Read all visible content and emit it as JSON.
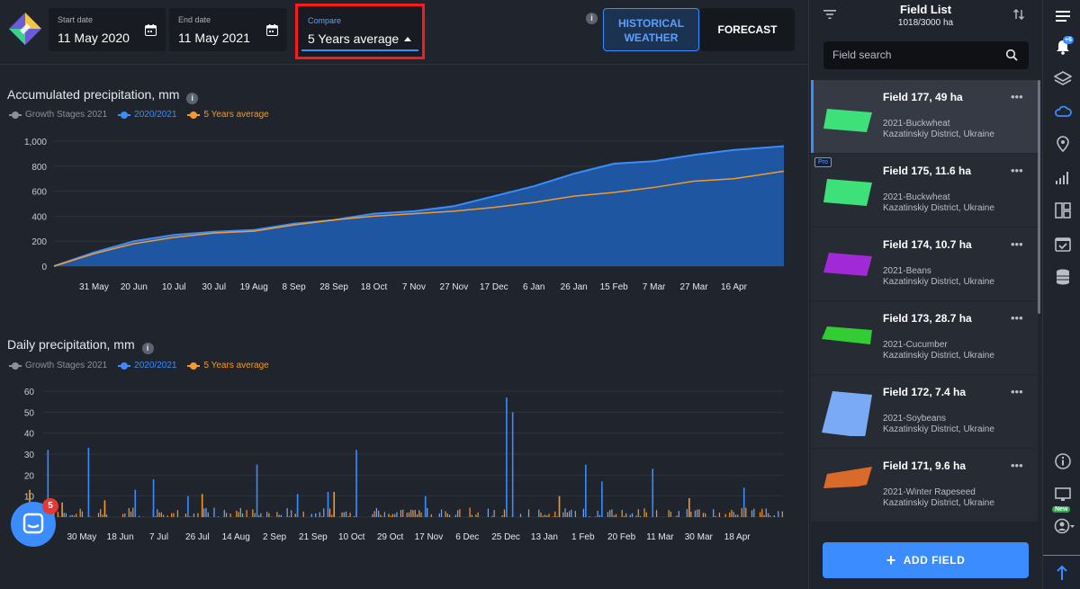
{
  "header": {
    "start_date": {
      "label": "Start date",
      "value": "11 May 2020"
    },
    "end_date": {
      "label": "End date",
      "value": "11 May 2021"
    },
    "compare": {
      "label": "Compare",
      "value": "5 Years average"
    },
    "historical_weather": "HISTORICAL WEATHER",
    "forecast": "FORECAST",
    "info_glyph": "i"
  },
  "legend": {
    "growth_stages": "Growth Stages 2021",
    "season": "2020/2021",
    "average": "5 Years average"
  },
  "colors": {
    "accent": "#3a8cff",
    "orange": "#f39a2a",
    "gray": "#8a9099",
    "highlight": "#ff1a1a"
  },
  "chart_data": [
    {
      "type": "area",
      "title": "Accumulated precipitation, mm",
      "legend": [
        "Growth Stages 2021",
        "2020/2021",
        "5 Years average"
      ],
      "ylim": [
        0,
        1000
      ],
      "y_ticks": [
        "0",
        "200",
        "400",
        "600",
        "800",
        "1,000"
      ],
      "x_ticks": [
        "31 May",
        "20 Jun",
        "10 Jul",
        "30 Jul",
        "19 Aug",
        "8 Sep",
        "28 Sep",
        "18 Oct",
        "7 Nov",
        "27 Nov",
        "17 Dec",
        "6 Jan",
        "26 Jan",
        "15 Feb",
        "7 Mar",
        "27 Mar",
        "16 Apr"
      ],
      "grid": true,
      "series": [
        {
          "name": "2020/2021",
          "x": [
            "11 May",
            "31 May",
            "20 Jun",
            "10 Jul",
            "30 Jul",
            "19 Aug",
            "8 Sep",
            "28 Sep",
            "18 Oct",
            "7 Nov",
            "27 Nov",
            "17 Dec",
            "6 Jan",
            "26 Jan",
            "15 Feb",
            "7 Mar",
            "27 Mar",
            "16 Apr",
            "11 May"
          ],
          "values": [
            0,
            110,
            200,
            250,
            275,
            290,
            340,
            370,
            420,
            440,
            480,
            560,
            640,
            740,
            820,
            840,
            890,
            930,
            960
          ]
        },
        {
          "name": "5 Years average",
          "x": [
            "11 May",
            "31 May",
            "20 Jun",
            "10 Jul",
            "30 Jul",
            "19 Aug",
            "8 Sep",
            "28 Sep",
            "18 Oct",
            "7 Nov",
            "27 Nov",
            "17 Dec",
            "6 Jan",
            "26 Jan",
            "15 Feb",
            "7 Mar",
            "27 Mar",
            "16 Apr",
            "11 May"
          ],
          "values": [
            0,
            100,
            180,
            230,
            265,
            280,
            330,
            370,
            400,
            420,
            440,
            470,
            510,
            560,
            590,
            630,
            680,
            700,
            760
          ]
        }
      ]
    },
    {
      "type": "bar",
      "title": "Daily precipitation, mm",
      "legend": [
        "Growth Stages 2021",
        "2020/2021",
        "5 Years average"
      ],
      "ylim": [
        0,
        60
      ],
      "y_ticks": [
        "0",
        "10",
        "20",
        "30",
        "40",
        "50",
        "60"
      ],
      "x_ticks": [
        "30 May",
        "18 Jun",
        "7 Jul",
        "26 Jul",
        "14 Aug",
        "2 Sep",
        "21 Sep",
        "10 Oct",
        "29 Oct",
        "17 Nov",
        "6 Dec",
        "25 Dec",
        "13 Jan",
        "1 Feb",
        "20 Feb",
        "11 Mar",
        "30 Mar",
        "18 Apr"
      ],
      "grid": true,
      "series": [
        {
          "name": "2020/2021",
          "peaks": [
            {
              "date": "13 May",
              "value": 32
            },
            {
              "date": "2 Jun",
              "value": 33
            },
            {
              "date": "25 Jun",
              "value": 13
            },
            {
              "date": "4 Jul",
              "value": 18
            },
            {
              "date": "21 Jul",
              "value": 10
            },
            {
              "date": "24 Aug",
              "value": 25
            },
            {
              "date": "13 Sep",
              "value": 11
            },
            {
              "date": "28 Sep",
              "value": 12
            },
            {
              "date": "12 Oct",
              "value": 32
            },
            {
              "date": "15 Nov",
              "value": 10
            },
            {
              "date": "25 Dec",
              "value": 57
            },
            {
              "date": "28 Dec",
              "value": 50
            },
            {
              "date": "2 Feb",
              "value": 25
            },
            {
              "date": "10 Feb",
              "value": 17
            },
            {
              "date": "7 Mar",
              "value": 23
            },
            {
              "date": "21 Apr",
              "value": 14
            }
          ]
        },
        {
          "name": "5 Years average",
          "peaks": [
            {
              "date": "20 May",
              "value": 7
            },
            {
              "date": "10 Jun",
              "value": 8
            },
            {
              "date": "28 Jul",
              "value": 11
            },
            {
              "date": "1 Oct",
              "value": 12
            },
            {
              "date": "20 Jan",
              "value": 10
            },
            {
              "date": "25 Mar",
              "value": 9
            },
            {
              "date": "4 May",
              "value": 13
            }
          ]
        }
      ]
    }
  ],
  "sidebar": {
    "title": "Field List",
    "subtitle": "1018/3000 ha",
    "search_placeholder": "Field search",
    "add_field": "ADD FIELD",
    "fields": [
      {
        "name": "Field 177, 49 ha",
        "crop": "2021-Buckwheat",
        "location": "Kazatinskiy District, Ukraine",
        "color": "#3ee07a"
      },
      {
        "name": "Field 175, 11.6 ha",
        "crop": "2021-Buckwheat",
        "location": "Kazatinskiy District, Ukraine",
        "color": "#3ee07a",
        "badge": "Pro"
      },
      {
        "name": "Field 174, 10.7 ha",
        "crop": "2021-Beans",
        "location": "Kazatinskiy District, Ukraine",
        "color": "#a22ad6"
      },
      {
        "name": "Field 173, 28.7 ha",
        "crop": "2021-Cucumber",
        "location": "Kazatinskiy District, Ukraine",
        "color": "#33cc33"
      },
      {
        "name": "Field 172, 7.4 ha",
        "crop": "2021-Soybeans",
        "location": "Kazatinskiy District, Ukraine",
        "color": "#7aaaf5"
      },
      {
        "name": "Field 171, 9.6 ha",
        "crop": "2021-Winter Rapeseed",
        "location": "Kazatinskiy District, Ukraine",
        "color": "#d96a2a"
      }
    ]
  },
  "rail": {
    "notification_badge": "+6",
    "new_badge": "New",
    "icons": [
      "menu-icon",
      "bell-icon",
      "layers-icon",
      "cloud-icon",
      "pin-icon",
      "chart-icon",
      "dashboard-icon",
      "calendar-icon",
      "database-icon",
      "info-icon",
      "monitor-icon",
      "account-icon"
    ]
  },
  "chat": {
    "badge": "5"
  }
}
